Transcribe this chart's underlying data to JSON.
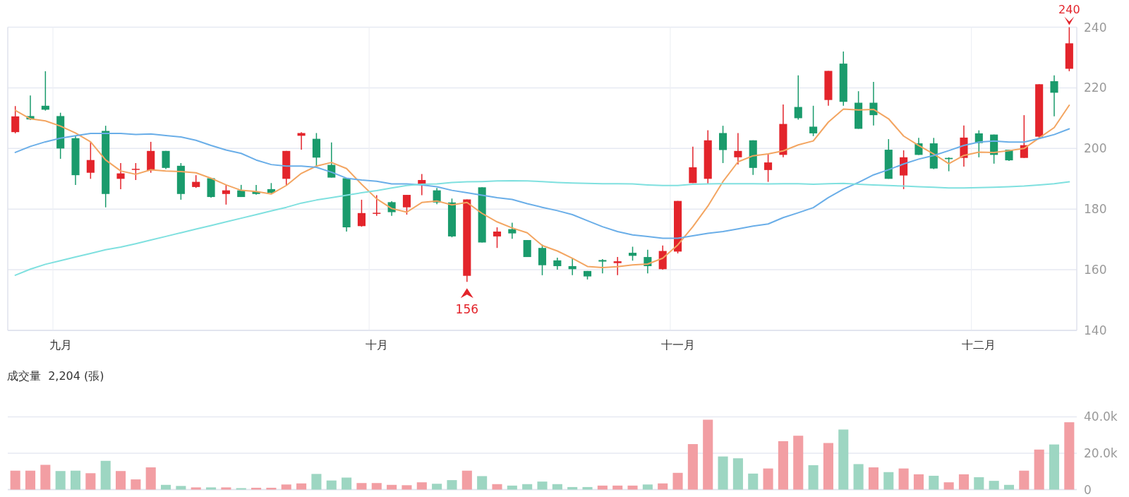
{
  "chart_data": [
    {
      "type": "candlestick",
      "categories": [
        null,
        null,
        null,
        "九月",
        null,
        null,
        null,
        null,
        null,
        null,
        null,
        null,
        null,
        null,
        null,
        null,
        null,
        null,
        null,
        null,
        null,
        null,
        null,
        null,
        "十月",
        null,
        null,
        null,
        null,
        null,
        null,
        null,
        null,
        null,
        null,
        null,
        null,
        null,
        null,
        null,
        null,
        null,
        null,
        null,
        "十一月",
        null,
        null,
        null,
        null,
        null,
        null,
        null,
        null,
        null,
        null,
        null,
        null,
        null,
        null,
        null,
        null,
        null,
        null,
        null,
        "十二月",
        null,
        null,
        null,
        null,
        null,
        null
      ],
      "colors": [
        "#e3242b",
        "#1a9b6c",
        "#1a9b6c",
        "#1a9b6c",
        "#1a9b6c",
        "#e3242b",
        "#1a9b6c",
        "#e3242b",
        "#e3242b",
        "#e3242b",
        "#1a9b6c",
        "#1a9b6c",
        "#e3242b",
        "#1a9b6c",
        "#e3242b",
        "#1a9b6c",
        "#1a9b6c",
        "#1a9b6c",
        "#e3242b",
        "#e3242b",
        "#1a9b6c",
        "#1a9b6c",
        "#1a9b6c",
        "#e3242b",
        "#e3242b",
        "#1a9b6c",
        "#e3242b",
        "#e3242b",
        "#1a9b6c",
        "#1a9b6c",
        "#e3242b",
        "#1a9b6c",
        "#e3242b",
        "#1a9b6c",
        "#1a9b6c",
        "#1a9b6c",
        "#1a9b6c",
        "#1a9b6c",
        "#1a9b6c",
        "#1a9b6c",
        "#e3242b",
        "#1a9b6c",
        "#1a9b6c",
        "#e3242b",
        "#e3242b",
        "#e3242b",
        "#e3242b",
        "#1a9b6c",
        "#e3242b",
        "#1a9b6c",
        "#e3242b",
        "#e3242b",
        "#1a9b6c",
        "#1a9b6c",
        "#e3242b",
        "#1a9b6c",
        "#1a9b6c",
        "#1a9b6c",
        "#1a9b6c",
        "#e3242b",
        "#1a9b6c",
        "#1a9b6c",
        "#1a9b6c",
        "#e3242b",
        "#1a9b6c",
        "#1a9b6c",
        "#1a9b6c",
        "#e3242b",
        "#e3242b",
        "#1a9b6c",
        "#e3242b"
      ],
      "ohlc": [
        [
          205.4,
          214,
          205,
          210.6
        ],
        [
          210.7,
          217.5,
          209.4,
          209.6
        ],
        [
          214.1,
          225.5,
          212.5,
          212.8
        ],
        [
          210.7,
          211.8,
          196.6,
          200
        ],
        [
          203.4,
          204.2,
          188,
          191.2
        ],
        [
          192,
          202.2,
          190,
          196.2
        ],
        [
          205.8,
          207.5,
          180.6,
          185
        ],
        [
          190,
          195.2,
          186.6,
          191.8
        ],
        [
          193,
          195.2,
          189.6,
          193.3
        ],
        [
          192.8,
          202.2,
          192,
          199.2
        ],
        [
          199.2,
          199.2,
          193.2,
          193.6
        ],
        [
          194.3,
          195.2,
          183.1,
          185
        ],
        [
          187.3,
          191.2,
          187,
          189
        ],
        [
          190.2,
          190.2,
          183.8,
          184
        ],
        [
          185,
          188,
          181.5,
          186.2
        ],
        [
          186.2,
          188,
          184,
          184
        ],
        [
          185.8,
          188,
          184.8,
          185
        ],
        [
          186.6,
          188.6,
          185.2,
          185.4
        ],
        [
          190,
          199.2,
          188,
          199.2
        ],
        [
          204.2,
          205.4,
          199.6,
          205.1
        ],
        [
          203.2,
          205.1,
          193.8,
          197
        ],
        [
          194.6,
          202,
          190.4,
          190.4
        ],
        [
          190.2,
          190.2,
          172.6,
          174
        ],
        [
          174.4,
          183.1,
          174.2,
          178.7
        ],
        [
          178.5,
          184.6,
          177.8,
          178.8
        ],
        [
          182.3,
          182.6,
          177.8,
          179
        ],
        [
          180.6,
          184.7,
          178.2,
          184.7
        ],
        [
          188,
          191.6,
          184.6,
          189.6
        ],
        [
          186.2,
          187,
          181.6,
          182.2
        ],
        [
          182.2,
          183.5,
          170.7,
          171
        ],
        [
          158,
          183.2,
          156,
          183.2
        ],
        [
          187.2,
          187.2,
          169,
          169
        ],
        [
          171,
          174,
          167.2,
          172.6
        ],
        [
          173.4,
          175.5,
          170.2,
          172
        ],
        [
          169.8,
          169.8,
          164.2,
          164.2
        ],
        [
          167.2,
          168.3,
          158.2,
          161.5
        ],
        [
          163.1,
          164,
          160,
          161.2
        ],
        [
          161.2,
          164,
          158.2,
          160.2
        ],
        [
          159.6,
          159.6,
          156.8,
          157.8
        ],
        [
          163.2,
          163.5,
          158.8,
          162.7
        ],
        [
          162.2,
          164.2,
          158.2,
          162.8
        ],
        [
          165.6,
          167.6,
          163,
          164.6
        ],
        [
          164.2,
          166.6,
          158.8,
          161.2
        ],
        [
          160.2,
          168,
          160,
          166.2
        ],
        [
          166,
          182.7,
          165.4,
          182.7
        ],
        [
          188.6,
          200.6,
          188.6,
          193.8
        ],
        [
          190,
          206,
          188.2,
          202.7
        ],
        [
          205.1,
          207.5,
          195.2,
          199.5
        ],
        [
          197.1,
          205.1,
          194.7,
          199.2
        ],
        [
          202.7,
          202.7,
          191.3,
          193.6
        ],
        [
          192.9,
          198.3,
          189,
          195.4
        ],
        [
          197.9,
          214.5,
          197.1,
          208.1
        ],
        [
          213.7,
          224.1,
          209.5,
          210
        ],
        [
          207.2,
          214.1,
          204.1,
          205
        ],
        [
          216,
          225.6,
          214.1,
          225.6
        ],
        [
          228,
          232,
          214.1,
          215.4
        ],
        [
          215.1,
          218.9,
          206.5,
          206.5
        ],
        [
          215.1,
          222,
          207.6,
          211
        ],
        [
          199.6,
          203.1,
          190,
          190
        ],
        [
          191.1,
          199.4,
          186.6,
          197.1
        ],
        [
          201.7,
          203.5,
          197.9,
          197.9
        ],
        [
          201.7,
          203.5,
          193.2,
          193.4
        ],
        [
          196.9,
          197.1,
          192.5,
          196.5
        ],
        [
          196.9,
          207.6,
          194,
          203.6
        ],
        [
          205,
          206,
          197.1,
          201.8
        ],
        [
          204.6,
          204.6,
          195,
          197.9
        ],
        [
          199.6,
          199.6,
          195.9,
          196.1
        ],
        [
          196.9,
          211,
          196.9,
          201.1
        ],
        [
          203.9,
          221.2,
          203.5,
          221.2
        ],
        [
          222.2,
          224.1,
          210.6,
          218.4
        ],
        [
          226.3,
          240,
          225.5,
          234.7
        ]
      ],
      "series": [
        {
          "type": "line",
          "color": "#f3a561",
          "values": [
            212.6,
            209.8,
            209.1,
            207.4,
            205.1,
            202.2,
            196.2,
            192.6,
            191.5,
            193,
            192.6,
            192.4,
            192,
            190.2,
            188,
            186.2,
            185.8,
            185,
            187.8,
            191.8,
            194.2,
            195.4,
            193.4,
            188.2,
            183.4,
            180.2,
            179,
            182.2,
            182.7,
            181.4,
            182.2,
            178.6,
            175.8,
            173.8,
            172.2,
            168,
            166.2,
            163.8,
            161.1,
            160.7,
            161,
            161.6,
            161.9,
            163.8,
            168.2,
            174.2,
            181,
            189.1,
            195.6,
            197.6,
            198.2,
            199.2,
            201.2,
            202.5,
            208.7,
            213,
            212.7,
            212.9,
            209.8,
            204.1,
            201,
            198.2,
            195,
            197.7,
            198.8,
            198.7,
            199.3,
            200,
            203.5,
            206.9,
            214.3
          ]
        },
        {
          "type": "line",
          "color": "#6aaee8",
          "values": [
            198.7,
            200.7,
            202.2,
            203.4,
            204.2,
            205,
            205,
            205,
            204.6,
            204.8,
            204.3,
            203.8,
            202.7,
            201,
            199.5,
            198.4,
            196.2,
            194.7,
            194.2,
            194.2,
            193.8,
            192.2,
            190.2,
            189.6,
            189.2,
            188.3,
            188.3,
            188,
            187.4,
            186.2,
            185.4,
            184.6,
            183.8,
            183.2,
            181.8,
            180.6,
            179.5,
            178.2,
            176.2,
            174.2,
            172.6,
            171.5,
            171,
            170.4,
            170.4,
            171.2,
            172,
            172.6,
            173.5,
            174.4,
            175.1,
            177.2,
            178.8,
            180.5,
            183.8,
            186.6,
            188.8,
            191.3,
            193,
            194.9,
            196.5,
            197.7,
            199.3,
            201,
            202.1,
            202.5,
            202.1,
            202.1,
            203.3,
            204.6,
            206.5
          ]
        },
        {
          "type": "line",
          "color": "#7fe0df",
          "values": [
            158.2,
            160.2,
            161.8,
            163,
            164.2,
            165.4,
            166.6,
            167.5,
            168.6,
            169.8,
            171,
            172.2,
            173.4,
            174.6,
            175.8,
            177,
            178.2,
            179.4,
            180.6,
            182,
            183,
            183.8,
            184.6,
            185.4,
            186.1,
            187,
            187.8,
            188.2,
            188.3,
            188.8,
            189,
            189.1,
            189.3,
            189.4,
            189.3,
            189.1,
            188.8,
            188.6,
            188.5,
            188.4,
            188.4,
            188.3,
            188,
            187.8,
            187.8,
            188.2,
            188.3,
            188.4,
            188.4,
            188.4,
            188.3,
            188.4,
            188.4,
            188.2,
            188.4,
            188.5,
            188.2,
            188,
            187.8,
            187.6,
            187.4,
            187.2,
            187,
            187,
            187.1,
            187.2,
            187.4,
            187.6,
            188,
            188.4,
            189
          ]
        }
      ],
      "ylim": [
        140,
        240
      ],
      "yticks": [
        140,
        160,
        180,
        200,
        220,
        240
      ],
      "grid": true,
      "annotations": [
        {
          "text": "240",
          "y": 240
        },
        {
          "text": "156",
          "y": 156
        }
      ]
    },
    {
      "type": "bar",
      "title": "成交量  2,204 (張)",
      "categories": [
        null,
        null,
        null,
        null,
        null,
        null,
        null,
        null,
        null,
        null,
        null,
        null,
        null,
        null,
        null,
        null,
        null,
        null,
        null,
        null,
        null,
        null,
        null,
        null,
        null,
        null,
        null,
        null,
        null,
        null,
        null,
        null,
        null,
        null,
        null,
        null,
        null,
        null,
        null,
        null,
        null,
        null,
        null,
        null,
        null,
        null,
        null,
        null,
        null,
        null,
        null,
        null,
        null,
        null,
        null,
        null,
        null,
        null,
        null,
        null,
        null,
        null,
        null,
        null,
        null,
        null,
        null,
        null,
        null,
        null,
        null
      ],
      "values": [
        10400,
        10400,
        13600,
        10200,
        10400,
        9000,
        15800,
        10200,
        5600,
        12200,
        2600,
        2000,
        1200,
        1200,
        1200,
        800,
        1000,
        1000,
        2800,
        3400,
        8600,
        5000,
        6600,
        3600,
        3600,
        2600,
        2400,
        4000,
        3200,
        5200,
        10400,
        7400,
        3000,
        2200,
        3000,
        4400,
        3000,
        1400,
        1400,
        2200,
        2200,
        2200,
        2800,
        3400,
        9200,
        25000,
        38400,
        18200,
        17200,
        8800,
        11600,
        26600,
        29600,
        13400,
        25600,
        33000,
        14000,
        12200,
        9600,
        11600,
        8400,
        7600,
        4000,
        8400,
        6800,
        4800,
        2600,
        10400,
        22000,
        24800,
        37000
      ],
      "colors": [
        "#f29ea3",
        "#f29ea3",
        "#f29ea3",
        "#9dd6c2",
        "#9dd6c2",
        "#f29ea3",
        "#9dd6c2",
        "#f29ea3",
        "#f29ea3",
        "#f29ea3",
        "#9dd6c2",
        "#9dd6c2",
        "#f29ea3",
        "#9dd6c2",
        "#f29ea3",
        "#9dd6c2",
        "#f29ea3",
        "#f29ea3",
        "#f29ea3",
        "#f29ea3",
        "#9dd6c2",
        "#9dd6c2",
        "#9dd6c2",
        "#f29ea3",
        "#f29ea3",
        "#f29ea3",
        "#f29ea3",
        "#f29ea3",
        "#9dd6c2",
        "#9dd6c2",
        "#f29ea3",
        "#9dd6c2",
        "#f29ea3",
        "#9dd6c2",
        "#9dd6c2",
        "#9dd6c2",
        "#9dd6c2",
        "#9dd6c2",
        "#9dd6c2",
        "#f29ea3",
        "#f29ea3",
        "#f29ea3",
        "#9dd6c2",
        "#f29ea3",
        "#f29ea3",
        "#f29ea3",
        "#f29ea3",
        "#9dd6c2",
        "#9dd6c2",
        "#9dd6c2",
        "#f29ea3",
        "#f29ea3",
        "#f29ea3",
        "#9dd6c2",
        "#f29ea3",
        "#9dd6c2",
        "#9dd6c2",
        "#f29ea3",
        "#9dd6c2",
        "#f29ea3",
        "#f29ea3",
        "#9dd6c2",
        "#f29ea3",
        "#f29ea3",
        "#9dd6c2",
        "#9dd6c2",
        "#9dd6c2",
        "#f29ea3",
        "#f29ea3",
        "#9dd6c2",
        "#f29ea3"
      ],
      "ylim": [
        0,
        40000
      ],
      "yticks": [
        {
          "value": 0,
          "label": "0"
        },
        {
          "value": 20000,
          "label": "20.0k"
        },
        {
          "value": 40000,
          "label": "40.0k"
        }
      ],
      "grid": "y"
    }
  ]
}
